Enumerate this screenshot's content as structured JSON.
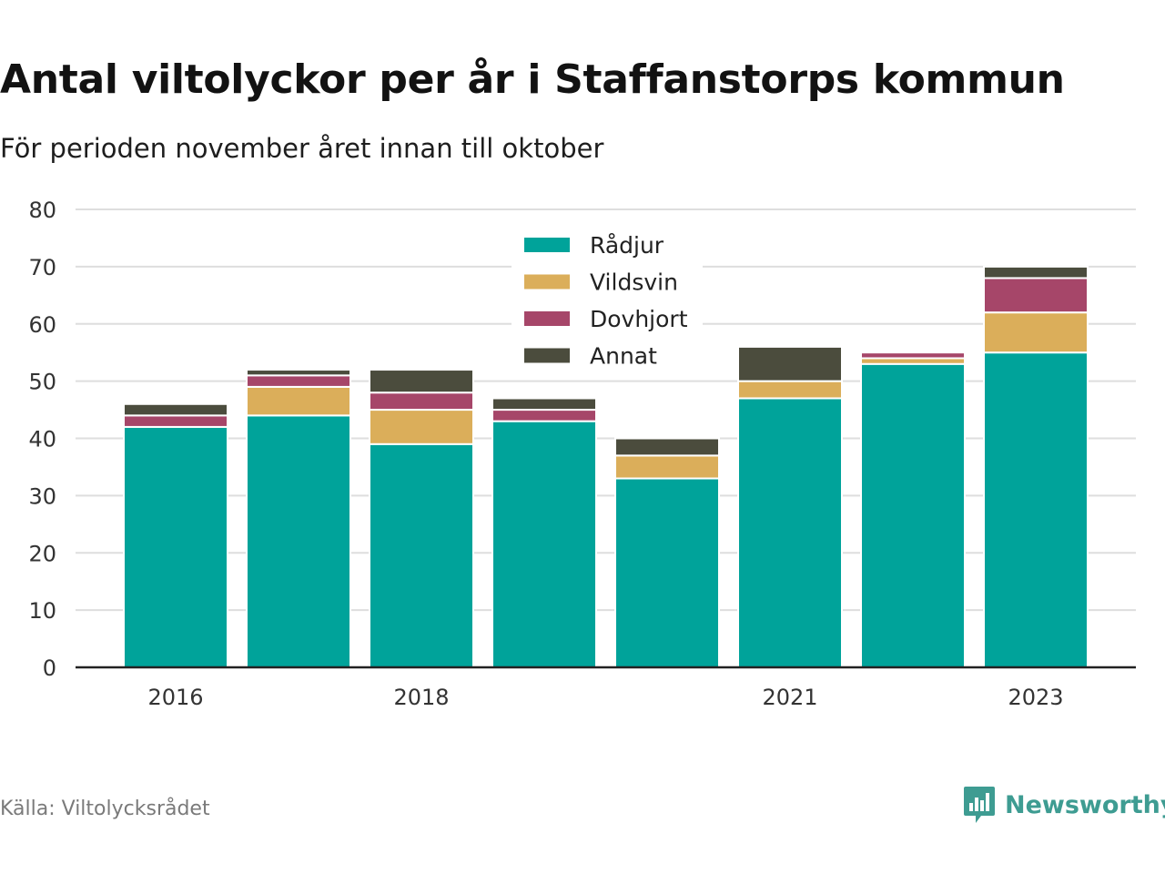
{
  "header": {
    "title": "Antal viltolyckor per år i Staffanstorps kommun",
    "subtitle": "För perioden november året innan till oktober"
  },
  "footer": {
    "source": "Källa: Viltolycksrådet",
    "brand": "Newsworthy",
    "brand_icon": "bar-chart-logo-icon",
    "brand_color": "#3e9c92"
  },
  "chart_data": {
    "type": "bar",
    "stacked": true,
    "categories": [
      "2016",
      "2017",
      "2018",
      "2019",
      "2020",
      "2021",
      "2022",
      "2023"
    ],
    "x_tick_labels": [
      "2016",
      "",
      "2018",
      "",
      "",
      "2021",
      "",
      "2023"
    ],
    "y_ticks": [
      0,
      10,
      20,
      30,
      40,
      50,
      60,
      70,
      80
    ],
    "ylim": [
      0,
      80
    ],
    "grid": true,
    "legend_position": "top-center",
    "series": [
      {
        "name": "Rådjur",
        "color": "#00a39a",
        "values": [
          42,
          44,
          39,
          43,
          33,
          47,
          53,
          55
        ]
      },
      {
        "name": "Vildsvin",
        "color": "#dbae5a",
        "values": [
          0,
          5,
          6,
          0,
          4,
          3,
          1,
          7
        ]
      },
      {
        "name": "Dovhjort",
        "color": "#a64669",
        "values": [
          2,
          2,
          3,
          2,
          0,
          0,
          1,
          6
        ]
      },
      {
        "name": "Annat",
        "color": "#4b4c3d",
        "values": [
          2,
          1,
          4,
          2,
          3,
          6,
          0,
          2
        ]
      }
    ]
  }
}
